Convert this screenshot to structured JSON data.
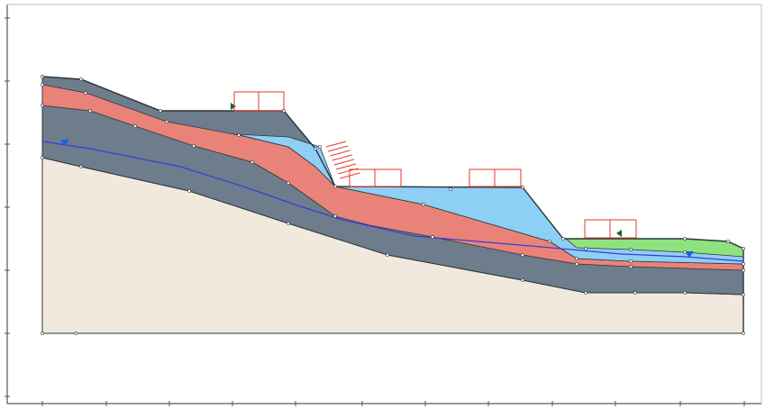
{
  "colors": {
    "background": "#ffffff",
    "frame": "#333333",
    "bedrock": "#f1e9dd",
    "lower_layer": "#6d7d8c",
    "red_layer": "#e98379",
    "blue_layer": "#8ecff5",
    "green_layer": "#8ee37e",
    "outline": "#2e343a",
    "water_table": "#3b3bd6",
    "water_marker": "#1a5fe0",
    "load_box": "#e23a2a",
    "anchor": "#e23a2a",
    "arrow_marker": "#1d5f2d"
  },
  "icons": {
    "water_table_marker": "inverted-triangle",
    "boundary_marker": "small-arrowhead",
    "anchors": "short-diagonal-lines",
    "loads": "red-rectangle"
  },
  "view": {
    "grid": false,
    "axis_tick_labels_legible": false
  },
  "labels": {}
}
